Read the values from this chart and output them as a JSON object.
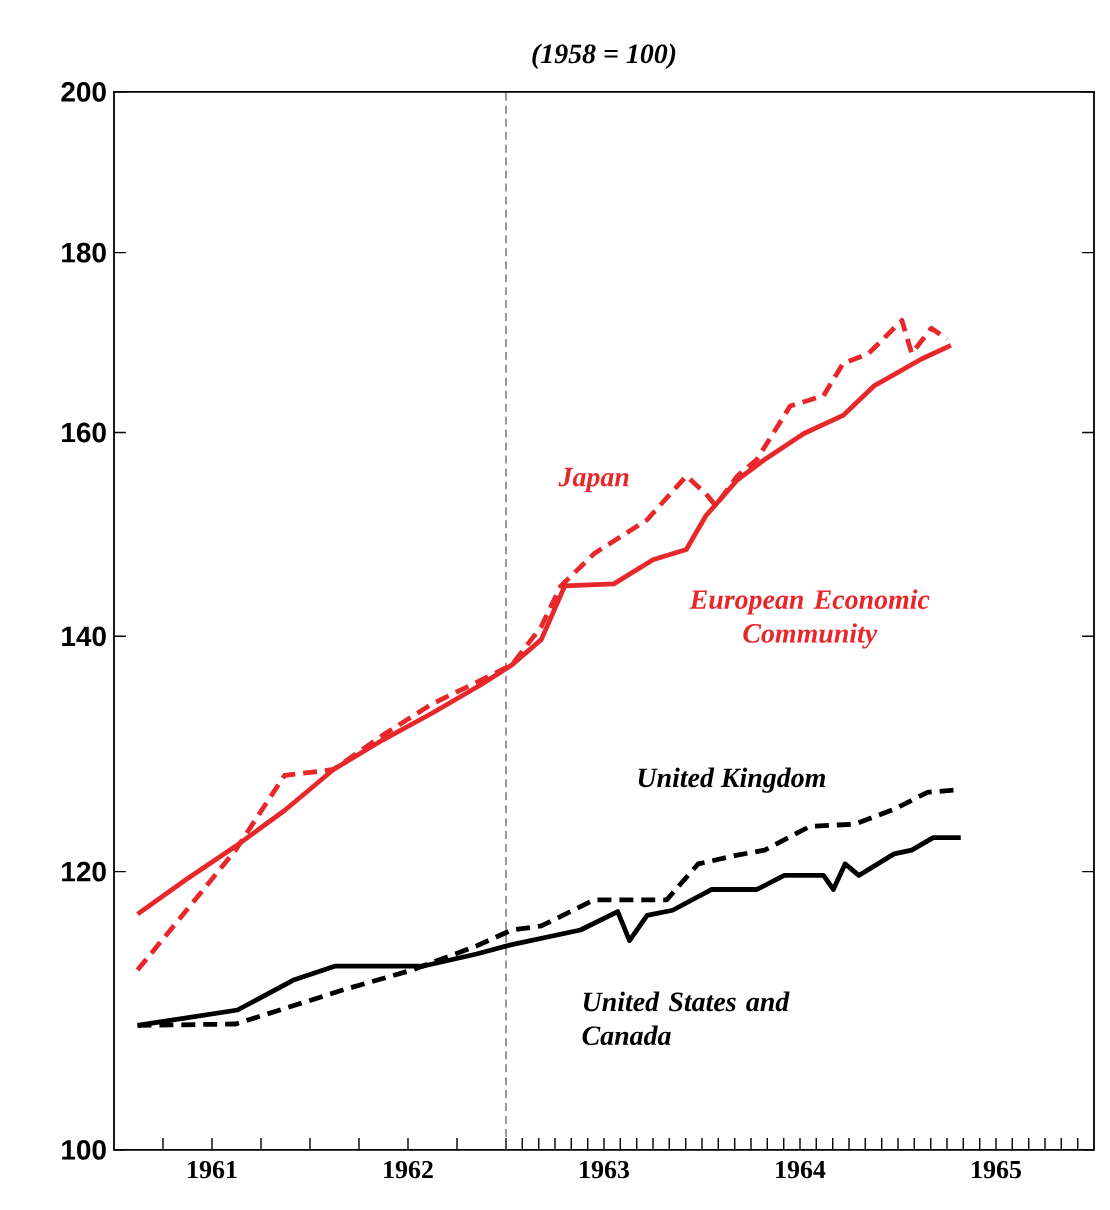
{
  "chart_data": {
    "type": "line",
    "title": "(1958 = 100)",
    "log": "y",
    "xlim": [
      1961,
      1966
    ],
    "ylim": [
      100,
      200
    ],
    "yticks": [
      100,
      120,
      140,
      160,
      180,
      200
    ],
    "xticks": [
      {
        "value": 1961.25,
        "label": null
      },
      {
        "value": 1961.5,
        "label": "1961"
      },
      {
        "value": 1961.75,
        "label": null
      },
      {
        "value": 1962,
        "label": null
      },
      {
        "value": 1962.25,
        "label": null
      },
      {
        "value": 1962.5,
        "label": "1962"
      },
      {
        "value": 1962.75,
        "label": null
      },
      {
        "value": 1963,
        "label": null
      },
      {
        "value": 1963.083,
        "label": null
      },
      {
        "value": 1963.167,
        "label": null
      },
      {
        "value": 1963.25,
        "label": null
      },
      {
        "value": 1963.333,
        "label": null
      },
      {
        "value": 1963.417,
        "label": null
      },
      {
        "value": 1963.5,
        "label": "1963"
      },
      {
        "value": 1963.583,
        "label": null
      },
      {
        "value": 1963.667,
        "label": null
      },
      {
        "value": 1963.75,
        "label": null
      },
      {
        "value": 1963.833,
        "label": null
      },
      {
        "value": 1963.917,
        "label": null
      },
      {
        "value": 1964,
        "label": null
      },
      {
        "value": 1964.083,
        "label": null
      },
      {
        "value": 1964.167,
        "label": null
      },
      {
        "value": 1964.25,
        "label": null
      },
      {
        "value": 1964.333,
        "label": null
      },
      {
        "value": 1964.417,
        "label": null
      },
      {
        "value": 1964.5,
        "label": "1964"
      },
      {
        "value": 1964.583,
        "label": null
      },
      {
        "value": 1964.667,
        "label": null
      },
      {
        "value": 1964.75,
        "label": null
      },
      {
        "value": 1964.833,
        "label": null
      },
      {
        "value": 1964.917,
        "label": null
      },
      {
        "value": 1965,
        "label": null
      },
      {
        "value": 1965.083,
        "label": null
      },
      {
        "value": 1965.167,
        "label": null
      },
      {
        "value": 1965.25,
        "label": null
      },
      {
        "value": 1965.333,
        "label": null
      },
      {
        "value": 1965.417,
        "label": null
      },
      {
        "value": 1965.5,
        "label": "1965"
      },
      {
        "value": 1965.583,
        "label": null
      },
      {
        "value": 1965.667,
        "label": null
      },
      {
        "value": 1965.75,
        "label": null
      },
      {
        "value": 1965.833,
        "label": null
      },
      {
        "value": 1965.917,
        "label": null
      }
    ],
    "marker": "none",
    "ref_lines": [
      {
        "axis": "x",
        "value": 1963,
        "color": "#555555",
        "line_style": "dashed"
      }
    ],
    "series": [
      {
        "name": "European Economic Community",
        "color": "#e8272a",
        "line_style": "solid",
        "x": [
          1961.12,
          1961.37,
          1961.62,
          1961.87,
          1962.12,
          1962.37,
          1962.62,
          1962.87,
          1963.03,
          1963.18,
          1963.3,
          1963.55,
          1963.75,
          1963.92,
          1964.02,
          1964.18,
          1964.32,
          1964.52,
          1964.72,
          1964.88,
          1965.12,
          1965.27
        ],
        "values": [
          116.7,
          119.4,
          122.0,
          124.9,
          128.3,
          130.8,
          133.1,
          135.6,
          137.4,
          139.7,
          144.7,
          144.9,
          147.2,
          148.2,
          151.5,
          155.1,
          157.2,
          159.9,
          161.8,
          165.0,
          167.9,
          169.4
        ]
      },
      {
        "name": "Japan",
        "color": "#e8272a",
        "line_style": "dashed",
        "x": [
          1961.12,
          1961.37,
          1961.62,
          1961.87,
          1962.12,
          1962.37,
          1962.62,
          1962.87,
          1963.03,
          1963.18,
          1963.28,
          1963.45,
          1963.72,
          1963.92,
          1964.02,
          1964.07,
          1964.18,
          1964.28,
          1964.45,
          1964.62,
          1964.72,
          1964.85,
          1965.02,
          1965.07,
          1965.17,
          1965.25
        ],
        "values": [
          112.5,
          117.0,
          121.7,
          127.8,
          128.3,
          131.2,
          133.9,
          136.0,
          137.4,
          140.9,
          144.7,
          147.8,
          151.1,
          155.5,
          153.7,
          152.5,
          155.5,
          157.2,
          162.8,
          163.9,
          167.4,
          168.5,
          172.2,
          168.5,
          171.3,
          170.1
        ]
      },
      {
        "name": "United Kingdom",
        "color": "#000000",
        "line_style": "dashed",
        "x": [
          1961.12,
          1961.62,
          1962.18,
          1962.52,
          1962.85,
          1963.03,
          1963.18,
          1963.45,
          1963.82,
          1963.98,
          1964.18,
          1964.32,
          1964.55,
          1964.78,
          1964.98,
          1965.15,
          1965.3
        ],
        "values": [
          108.5,
          108.6,
          111.1,
          112.5,
          114.3,
          115.5,
          115.8,
          117.8,
          117.8,
          120.6,
          121.3,
          121.7,
          123.6,
          123.8,
          125.0,
          126.4,
          126.6
        ]
      },
      {
        "name": "United States and Canada",
        "color": "#000000",
        "line_style": "solid",
        "x": [
          1961.12,
          1961.63,
          1961.92,
          1962.13,
          1962.58,
          1962.85,
          1963.03,
          1963.38,
          1963.57,
          1963.63,
          1963.72,
          1963.85,
          1964.05,
          1964.28,
          1964.42,
          1964.62,
          1964.67,
          1964.73,
          1964.8,
          1964.98,
          1965.07,
          1965.18,
          1965.32
        ],
        "values": [
          108.5,
          109.6,
          111.8,
          112.8,
          112.8,
          113.7,
          114.4,
          115.5,
          116.9,
          114.7,
          116.6,
          117.0,
          118.6,
          118.6,
          119.7,
          119.7,
          118.6,
          120.6,
          119.7,
          121.4,
          121.7,
          122.7,
          122.7
        ]
      }
    ]
  }
}
